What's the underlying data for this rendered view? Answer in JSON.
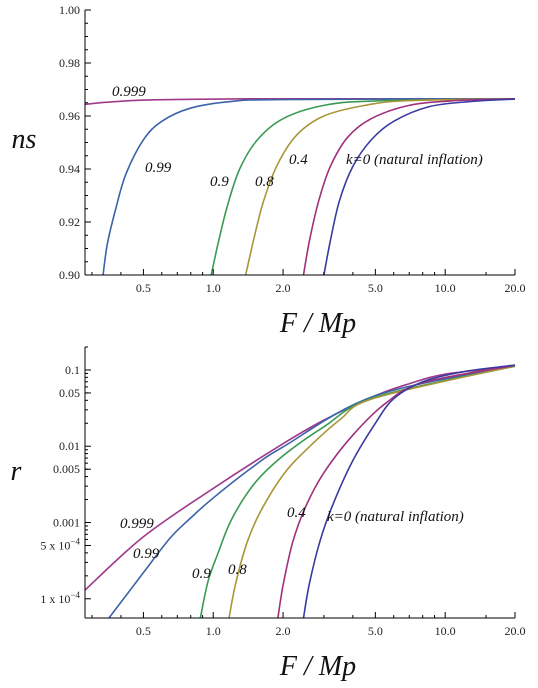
{
  "chart_data": [
    {
      "type": "line",
      "xlabel": "F / Mp",
      "ylabel": "ns",
      "xscale": "log",
      "xlim": [
        0.28,
        20.0
      ],
      "ylim": [
        0.9,
        1.0
      ],
      "x_ticks": [
        "0.5",
        "1.0",
        "2.0",
        "5.0",
        "10.0",
        "20.0"
      ],
      "y_ticks": [
        "0.90",
        "0.92",
        "0.94",
        "0.96",
        "0.98",
        "1.00"
      ],
      "series": [
        {
          "name": "0.999",
          "color": "#a03a8c",
          "x": [
            0.28,
            0.35,
            0.5,
            0.8,
            1.5,
            3.0,
            6.0,
            20.0
          ],
          "y": [
            0.9644,
            0.9652,
            0.966,
            0.9663,
            0.9665,
            0.9665,
            0.9665,
            0.9665
          ]
        },
        {
          "name": "0.99",
          "color": "#3c63a8",
          "x": [
            0.335,
            0.35,
            0.38,
            0.42,
            0.5,
            0.6,
            0.8,
            1.2,
            2.0,
            20.0
          ],
          "y": [
            0.9,
            0.912,
            0.925,
            0.938,
            0.951,
            0.958,
            0.963,
            0.9655,
            0.9662,
            0.9665
          ]
        },
        {
          "name": "0.9",
          "color": "#3a9a52",
          "x": [
            0.98,
            1.05,
            1.15,
            1.3,
            1.55,
            2.0,
            3.0,
            5.0,
            20.0
          ],
          "y": [
            0.9,
            0.912,
            0.926,
            0.94,
            0.951,
            0.959,
            0.964,
            0.9657,
            0.9665
          ]
        },
        {
          "name": "0.8",
          "color": "#a8963a",
          "x": [
            1.38,
            1.5,
            1.65,
            1.9,
            2.3,
            3.0,
            4.5,
            7.0,
            20.0
          ],
          "y": [
            0.9,
            0.914,
            0.928,
            0.942,
            0.953,
            0.96,
            0.964,
            0.9658,
            0.9665
          ]
        },
        {
          "name": "0.4",
          "color": "#a0307c",
          "x": [
            2.45,
            2.6,
            2.85,
            3.2,
            3.8,
            4.8,
            7.0,
            11.0,
            20.0
          ],
          "y": [
            0.9,
            0.913,
            0.928,
            0.941,
            0.952,
            0.959,
            0.964,
            0.9658,
            0.9665
          ]
        },
        {
          "name": "k=0 (natural inflation)",
          "color": "#3a3aa0",
          "x": [
            3.0,
            3.2,
            3.5,
            4.0,
            4.8,
            6.0,
            8.5,
            13.0,
            20.0
          ],
          "y": [
            0.9,
            0.913,
            0.928,
            0.941,
            0.951,
            0.958,
            0.9635,
            0.9655,
            0.9664
          ]
        }
      ],
      "annotations": [
        "0.999",
        "0.99",
        "0.9",
        "0.8",
        "0.4",
        "k=0 (natural inflation)"
      ]
    },
    {
      "type": "line",
      "xlabel": "F / Mp",
      "ylabel": "r",
      "xscale": "log",
      "yscale": "log",
      "xlim": [
        0.28,
        20.0
      ],
      "ylim": [
        5.6e-05,
        0.2
      ],
      "x_ticks": [
        "0.5",
        "1.0",
        "2.0",
        "5.0",
        "10.0",
        "20.0"
      ],
      "y_ticks": [
        "0.1",
        "0.05",
        "0.01",
        "0.005",
        "0.001",
        "5 x 10^-4",
        "1 x 10^-4"
      ],
      "y_tick_values": [
        0.1,
        0.05,
        0.01,
        0.005,
        0.001,
        0.0005,
        0.0001
      ],
      "series": [
        {
          "name": "0.999",
          "color": "#a03a8c",
          "x": [
            0.28,
            0.5,
            1.0,
            2.0,
            3.0,
            5.0,
            7.0,
            10.0,
            20.0
          ],
          "y": [
            0.00013,
            0.00065,
            0.0028,
            0.0108,
            0.022,
            0.046,
            0.066,
            0.088,
            0.112
          ]
        },
        {
          "name": "0.99",
          "color": "#3c63a8",
          "x": [
            0.355,
            0.4,
            0.5,
            0.65,
            0.8,
            1.0,
            1.5,
            2.0,
            5.0,
            20.0
          ],
          "y": [
            5.6e-05,
            9e-05,
            0.00022,
            0.00062,
            0.00115,
            0.0021,
            0.0055,
            0.0098,
            0.046,
            0.112
          ]
        },
        {
          "name": "0.9",
          "color": "#3a9a52",
          "x": [
            0.88,
            0.95,
            1.05,
            1.2,
            1.5,
            2.0,
            3.0,
            5.0,
            20.0
          ],
          "y": [
            5.6e-05,
            0.00017,
            0.0004,
            0.0011,
            0.0032,
            0.0075,
            0.018,
            0.044,
            0.112
          ]
        },
        {
          "name": "0.8",
          "color": "#a8963a",
          "x": [
            1.17,
            1.25,
            1.4,
            1.6,
            2.0,
            2.5,
            3.5,
            5.0,
            20.0
          ],
          "y": [
            5.6e-05,
            0.00016,
            0.00055,
            0.0014,
            0.0042,
            0.0088,
            0.022,
            0.043,
            0.113
          ]
        },
        {
          "name": "0.4",
          "color": "#a0307c",
          "x": [
            1.9,
            2.0,
            2.2,
            2.5,
            3.0,
            4.0,
            5.5,
            8.0,
            20.0
          ],
          "y": [
            5.6e-05,
            0.00015,
            0.00055,
            0.0016,
            0.0045,
            0.014,
            0.036,
            0.068,
            0.115
          ]
        },
        {
          "name": "k=0 (natural inflation)",
          "color": "#3a3aa0",
          "x": [
            2.45,
            2.6,
            2.9,
            3.3,
            4.0,
            5.0,
            6.0,
            8.0,
            12.0,
            20.0
          ],
          "y": [
            5.6e-05,
            0.00016,
            0.0006,
            0.0018,
            0.0065,
            0.02,
            0.042,
            0.07,
            0.095,
            0.116
          ]
        }
      ],
      "annotations": [
        "0.999",
        "0.99",
        "0.9",
        "0.8",
        "0.4",
        "k=0 (natural inflation)"
      ]
    }
  ]
}
